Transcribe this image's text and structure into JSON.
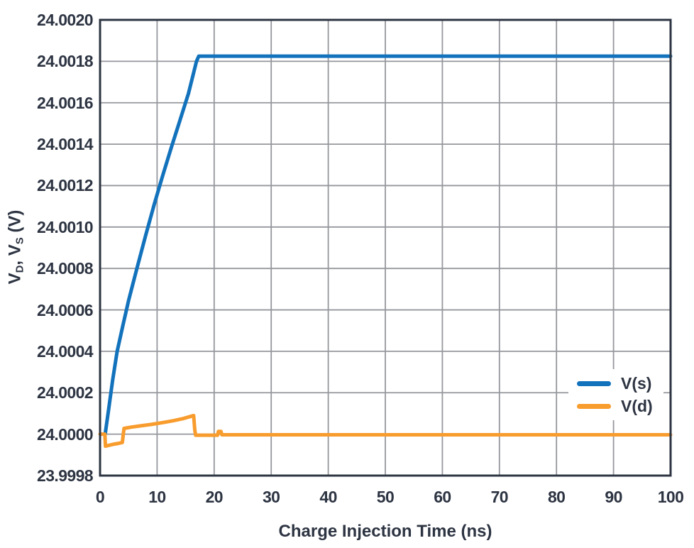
{
  "style": {
    "background": "#FFFFFF",
    "text_color": "#2D3442",
    "grid_color": "#95979C",
    "axis_color": "#2D3442",
    "series_stroke_width": 5,
    "grid_stroke_width": 1.8,
    "axis_stroke_width": 3
  },
  "chart_data": {
    "type": "line",
    "title": "",
    "xlabel": "Charge Injection Time (ns)",
    "ylabel": "VD, VS (V)",
    "ylabel_parts": [
      {
        "text": "V"
      },
      {
        "text": "D",
        "sub": true
      },
      {
        "text": ", V"
      },
      {
        "text": "S",
        "sub": true
      },
      {
        "text": " (V)"
      }
    ],
    "xlim": [
      0,
      100
    ],
    "ylim": [
      23.9998,
      24.002
    ],
    "grid": true,
    "x_ticks": [
      0,
      10,
      20,
      30,
      40,
      50,
      60,
      70,
      80,
      90,
      100
    ],
    "x_tick_labels": [
      "0",
      "10",
      "20",
      "30",
      "40",
      "50",
      "60",
      "70",
      "80",
      "90",
      "100"
    ],
    "y_ticks": [
      23.9998,
      24.0,
      24.0002,
      24.0004,
      24.0006,
      24.0008,
      24.001,
      24.0012,
      24.0014,
      24.0016,
      24.0018,
      24.002
    ],
    "y_tick_labels": [
      "23.9998",
      "24.0000",
      "24.0002",
      "24.0004",
      "24.0006",
      "24.0008",
      "24.0010",
      "24.0012",
      "24.0014",
      "24.0016",
      "24.0018",
      "24.0020"
    ],
    "legend": {
      "position": "lower right",
      "entries": [
        {
          "label": "V(s)",
          "color": "#1272BC"
        },
        {
          "label": "V(d)",
          "color": "#F89C2E"
        }
      ]
    },
    "series": [
      {
        "name": "V(s)",
        "color": "#1272BC",
        "points": [
          [
            0.9,
            24.0
          ],
          [
            1.5,
            24.00012
          ],
          [
            2.2,
            24.00026
          ],
          [
            3.0,
            24.0004
          ],
          [
            4.0,
            24.000525
          ],
          [
            5.0,
            24.000645
          ],
          [
            6.5,
            24.000805
          ],
          [
            8.0,
            24.00096
          ],
          [
            9.5,
            24.00111
          ],
          [
            11.0,
            24.00125
          ],
          [
            12.5,
            24.001385
          ],
          [
            14.0,
            24.001515
          ],
          [
            15.5,
            24.001645
          ],
          [
            16.4,
            24.001745
          ],
          [
            16.9,
            24.0018
          ],
          [
            17.3,
            24.001825
          ],
          [
            100,
            24.001825
          ]
        ]
      },
      {
        "name": "V(d)",
        "color": "#F89C2E",
        "points": [
          [
            0,
            24.0
          ],
          [
            0.85,
            24.0
          ],
          [
            0.95,
            23.999942
          ],
          [
            1.5,
            23.999946
          ],
          [
            2.5,
            23.999952
          ],
          [
            3.3,
            23.999956
          ],
          [
            3.9,
            23.99996
          ],
          [
            4.05,
            23.999995
          ],
          [
            4.2,
            24.000028
          ],
          [
            5.5,
            24.000034
          ],
          [
            7,
            24.00004
          ],
          [
            9,
            24.000047
          ],
          [
            11,
            24.000056
          ],
          [
            13,
            24.000066
          ],
          [
            14.5,
            24.000075
          ],
          [
            15.8,
            24.000085
          ],
          [
            16.4,
            24.00009
          ],
          [
            16.6,
            24.00002
          ],
          [
            16.75,
            23.999995
          ],
          [
            20.6,
            23.999995
          ],
          [
            20.75,
            24.000013
          ],
          [
            21.2,
            24.000013
          ],
          [
            21.35,
            23.999997
          ],
          [
            100,
            23.999997
          ]
        ]
      }
    ]
  }
}
